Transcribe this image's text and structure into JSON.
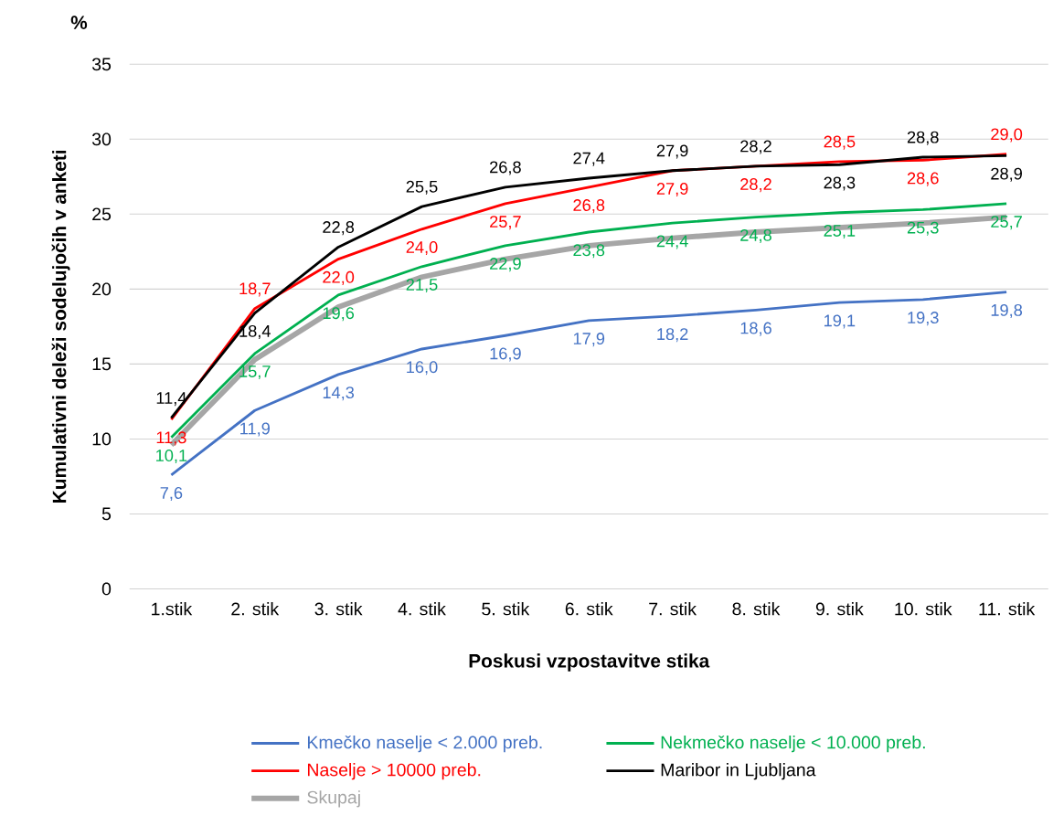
{
  "chart_data": {
    "type": "line",
    "xlabel": "Poskusi vzpostavitve stika",
    "ylabel": "Kumulativni deleži sodelujočih v anketi",
    "annotations": [
      "%"
    ],
    "categories": [
      "1.stik",
      "2. stik",
      "3. stik",
      "4. stik",
      "5. stik",
      "6. stik",
      "7. stik",
      "8. stik",
      "9. stik",
      "10. stik",
      "11. stik"
    ],
    "series": [
      {
        "name": "Kmečko naselje < 2.000 preb.",
        "color": "#4472c4",
        "values": [
          7.6,
          11.9,
          14.3,
          16.0,
          16.9,
          17.9,
          18.2,
          18.6,
          19.1,
          19.3,
          19.8
        ],
        "value_labels": [
          "7,6",
          "11,9",
          "14,3",
          "16,0",
          "16,9",
          "17,9",
          "18,2",
          "18,6",
          "19,1",
          "19,3",
          "19,8"
        ]
      },
      {
        "name": "Nekmečko naselje < 10.000 preb.",
        "color": "#00b050",
        "values": [
          10.1,
          15.7,
          19.6,
          21.5,
          22.9,
          23.8,
          24.4,
          24.8,
          25.1,
          25.3,
          25.7
        ],
        "value_labels": [
          "10,1",
          "15,7",
          "19,6",
          "21,5",
          "22,9",
          "23,8",
          "24,4",
          "24,8",
          "25,1",
          "25,3",
          "25,7"
        ]
      },
      {
        "name": "Naselje > 10000 preb.",
        "color": "#ff0000",
        "values": [
          11.3,
          18.7,
          22.0,
          24.0,
          25.7,
          26.8,
          27.9,
          28.2,
          28.5,
          28.6,
          29.0
        ],
        "value_labels": [
          "11,3",
          "18,7",
          "22,0",
          "24,0",
          "25,7",
          "26,8",
          "27,9",
          "28,2",
          "28,5",
          "28,6",
          "29,0"
        ]
      },
      {
        "name": "Maribor in Ljubljana",
        "color": "#000000",
        "values": [
          11.4,
          18.4,
          22.8,
          25.5,
          26.8,
          27.4,
          27.9,
          28.2,
          28.3,
          28.8,
          28.9
        ],
        "value_labels": [
          "11,4",
          "18,4",
          "22,8",
          "25,5",
          "26,8",
          "27,4",
          "27,9",
          "28,2",
          "28,3",
          "28,8",
          "28,9"
        ]
      },
      {
        "name": "Skupaj",
        "color": "#a6a6a6",
        "values": [
          9.6,
          15.3,
          18.8,
          20.8,
          22.0,
          22.9,
          23.4,
          23.8,
          24.1,
          24.4,
          24.8
        ]
      }
    ],
    "ylim": [
      0,
      35
    ],
    "yticks": [
      0,
      5,
      10,
      15,
      20,
      25,
      30,
      35
    ],
    "grid": "y",
    "legend": "bottom",
    "marker": "none",
    "line_style": "solid"
  }
}
